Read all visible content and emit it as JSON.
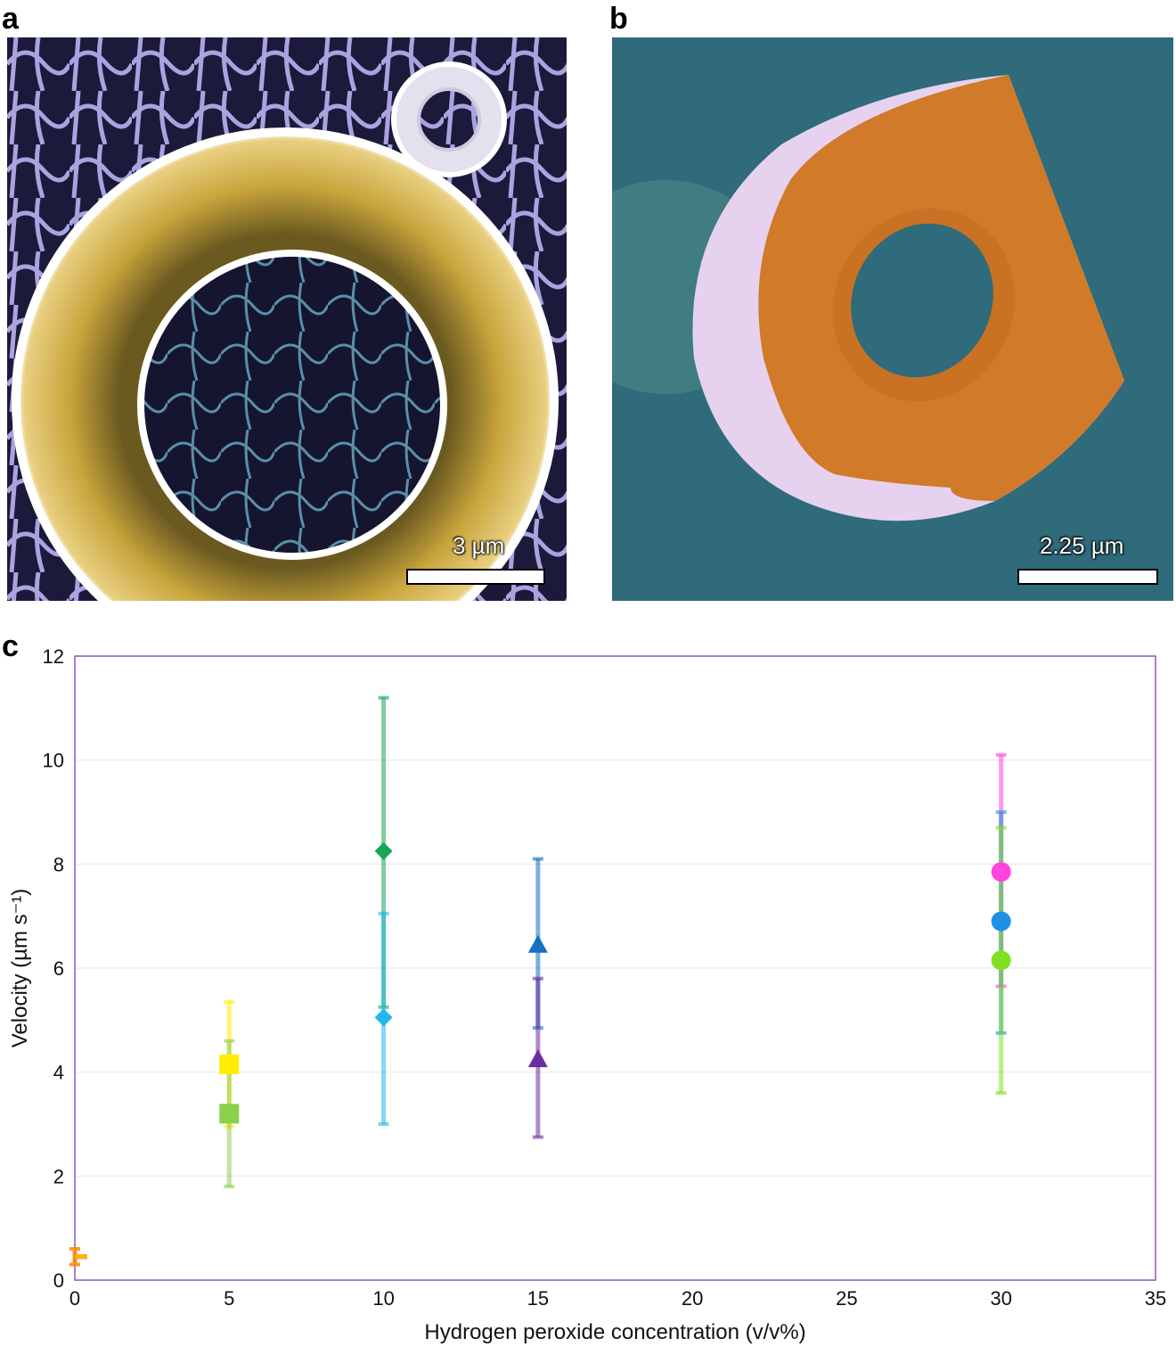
{
  "panels": {
    "a": {
      "letter": "a",
      "scale_text": "3 µm"
    },
    "b": {
      "letter": "b",
      "scale_text": "2.25 µm"
    },
    "c": {
      "letter": "c"
    }
  },
  "colors": {
    "frame": "#8a57c0",
    "grid": "#e8e8e8",
    "panel_a_background": "#1c1a3a",
    "panel_a_net": "#a9a3e0",
    "panel_a_ring": "#c9a43c",
    "panel_b_background": "#2f6b7a",
    "panel_b_disc": "#d07a2a",
    "panel_b_rim": "#e6d2ee"
  },
  "chart_data": {
    "type": "scatter",
    "xlabel": "Hydrogen peroxide concentration (v/v%)",
    "ylabel": "Velocity (µm s⁻¹)",
    "xlim": [
      0,
      35
    ],
    "ylim": [
      0,
      12
    ],
    "xticks": [
      0,
      5,
      10,
      15,
      20,
      25,
      30,
      35
    ],
    "yticks": [
      0,
      2,
      4,
      6,
      8,
      10,
      12
    ],
    "grid": "horizontal",
    "legend": "none",
    "series": [
      {
        "marker": "dash",
        "color": "#ff1a00",
        "x": 0,
        "y": 0.45,
        "err_low": 0.3,
        "err_high": 0.6
      },
      {
        "marker": "dash",
        "color": "#ffb000",
        "x": 0,
        "y": 0.45,
        "err_low": 0.3,
        "err_high": 0.6
      },
      {
        "marker": "square",
        "color": "#ffee00",
        "x": 5,
        "y": 4.15,
        "err_low": 2.95,
        "err_high": 5.35
      },
      {
        "marker": "square",
        "color": "#8bcf4a",
        "x": 5,
        "y": 3.2,
        "err_low": 1.8,
        "err_high": 4.6
      },
      {
        "marker": "diamond",
        "color": "#19a659",
        "x": 10,
        "y": 8.25,
        "err_low": 5.25,
        "err_high": 11.2
      },
      {
        "marker": "diamond",
        "color": "#24b8ea",
        "x": 10,
        "y": 5.05,
        "err_low": 3.0,
        "err_high": 7.05
      },
      {
        "marker": "triangle",
        "color": "#1370c2",
        "x": 15,
        "y": 6.45,
        "err_low": 4.85,
        "err_high": 8.1
      },
      {
        "marker": "triangle",
        "color": "#6b2e9e",
        "x": 15,
        "y": 4.25,
        "err_low": 2.75,
        "err_high": 5.8
      },
      {
        "marker": "circle",
        "color": "#ff44e0",
        "x": 30,
        "y": 7.85,
        "err_low": 5.65,
        "err_high": 10.1
      },
      {
        "marker": "circle",
        "color": "#1e8fe6",
        "x": 30,
        "y": 6.9,
        "err_low": 4.75,
        "err_high": 9.0
      },
      {
        "marker": "circle",
        "color": "#80e020",
        "x": 30,
        "y": 6.15,
        "err_low": 3.6,
        "err_high": 8.7
      }
    ]
  }
}
